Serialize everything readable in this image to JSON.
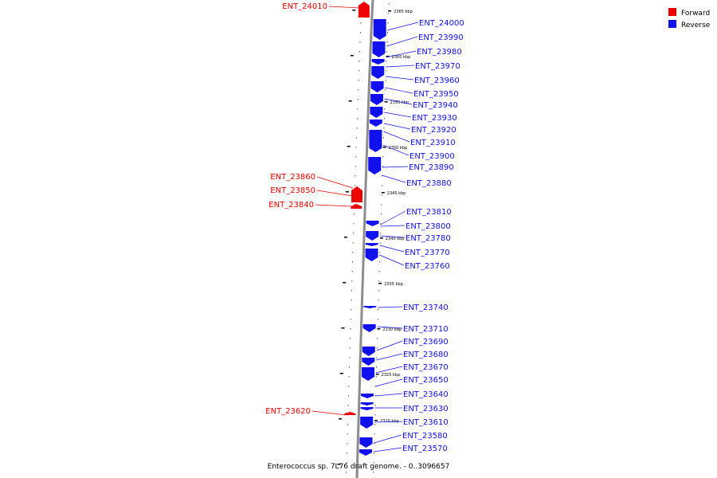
{
  "caption": "Enterococcus sp. 7L76 draft genome. - 0..3096657",
  "legend": [
    {
      "label": "Forward",
      "color": "#ee0000"
    },
    {
      "label": "Reverse",
      "color": "#1111ee"
    }
  ],
  "colors": {
    "forward": "#ee0000",
    "reverse": "#1111ee",
    "backbone": "#8c8c8c"
  },
  "ticks": [
    "2365 kbp",
    "2360 kbp",
    "2355 kbp",
    "2350 kbp",
    "2345 kbp",
    "2340 kbp",
    "2335 kbp",
    "2330 kbp",
    "2325 kbp",
    "2320 kbp"
  ],
  "forward_genes": [
    "ENT_24010",
    "ENT_23860",
    "ENT_23850",
    "ENT_23840",
    "ENT_23620"
  ],
  "reverse_genes": [
    "ENT_24000",
    "ENT_23990",
    "ENT_23980",
    "ENT_23970",
    "ENT_23960",
    "ENT_23950",
    "ENT_23940",
    "ENT_23930",
    "ENT_23920",
    "ENT_23910",
    "ENT_23900",
    "ENT_23890",
    "ENT_23880",
    "ENT_23810",
    "ENT_23800",
    "ENT_23780",
    "ENT_23770",
    "ENT_23760",
    "ENT_23740",
    "ENT_23710",
    "ENT_23690",
    "ENT_23680",
    "ENT_23670",
    "ENT_23650",
    "ENT_23640",
    "ENT_23630",
    "ENT_23610",
    "ENT_23580",
    "ENT_23570"
  ]
}
